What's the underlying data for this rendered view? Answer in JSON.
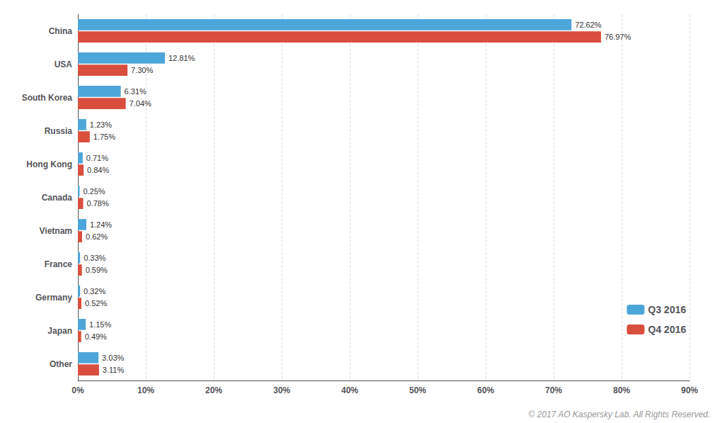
{
  "chart_data": {
    "type": "bar",
    "orientation": "horizontal",
    "categories": [
      "China",
      "USA",
      "South Korea",
      "Russia",
      "Hong Kong",
      "Canada",
      "Vietnam",
      "France",
      "Germany",
      "Japan",
      "Other"
    ],
    "series": [
      {
        "name": "Q3 2016",
        "color": "#4da6d9",
        "values": [
          72.62,
          12.81,
          6.31,
          1.23,
          0.71,
          0.25,
          1.24,
          0.33,
          0.32,
          1.15,
          3.03
        ],
        "value_labels": [
          "72.62%",
          "12.81%",
          "6.31%",
          "1.23%",
          "0.71%",
          "0.25%",
          "1.24%",
          "0.33%",
          "0.32%",
          "1.15%",
          "3.03%"
        ]
      },
      {
        "name": "Q4 2016",
        "color": "#d94f3d",
        "values": [
          76.97,
          7.3,
          7.04,
          1.75,
          0.84,
          0.78,
          0.62,
          0.59,
          0.52,
          0.49,
          3.11
        ],
        "value_labels": [
          "76.97%",
          "7.30%",
          "7.04%",
          "1.75%",
          "0.84%",
          "0.78%",
          "0.62%",
          "0.59%",
          "0.52%",
          "0.49%",
          "3.11%"
        ]
      }
    ],
    "xlim": [
      0,
      90
    ],
    "xticks": [
      {
        "value": 0,
        "label": "0%"
      },
      {
        "value": 10,
        "label": "10%"
      },
      {
        "value": 20,
        "label": "20%"
      },
      {
        "value": 30,
        "label": "30%"
      },
      {
        "value": 40,
        "label": "40%"
      },
      {
        "value": 50,
        "label": "50%"
      },
      {
        "value": 60,
        "label": "60%"
      },
      {
        "value": 70,
        "label": "70%"
      },
      {
        "value": 80,
        "label": "80%"
      },
      {
        "value": 90,
        "label": "90%"
      }
    ],
    "grid": true,
    "legend": "lower right",
    "data_labels": true,
    "annotations": [
      "© 2017 AO Kaspersky Lab. All Rights Reserved."
    ]
  }
}
